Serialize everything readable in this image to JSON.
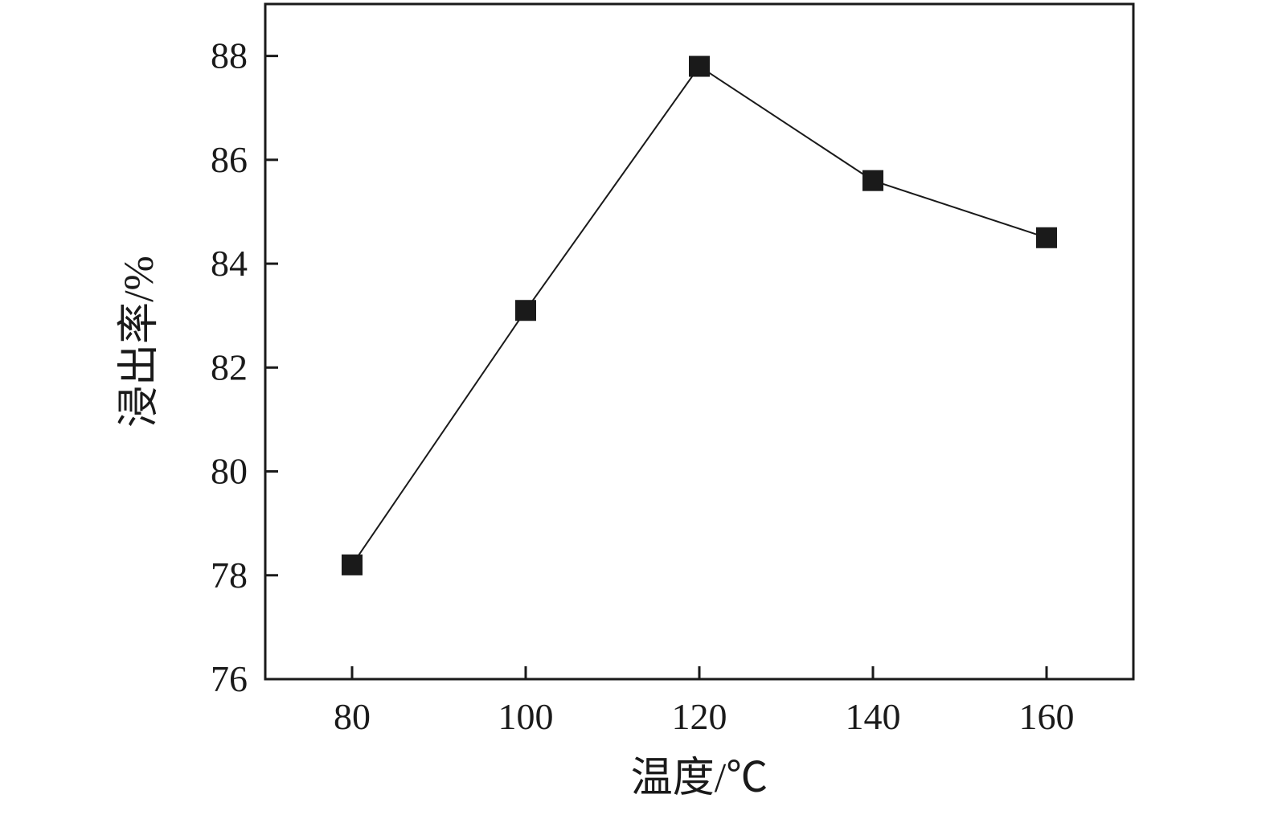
{
  "chart_data": {
    "type": "line",
    "series": [
      {
        "name": "浸出率",
        "x": [
          80,
          100,
          120,
          140,
          160
        ],
        "y": [
          78.2,
          83.1,
          87.8,
          85.6,
          84.5
        ],
        "marker": "square",
        "color": "#1a1a1a"
      }
    ],
    "title": "",
    "xlabel": "温度/℃",
    "ylabel": "浸出率/%",
    "xlim": [
      70,
      170
    ],
    "ylim": [
      76,
      89
    ],
    "x_ticks": [
      80,
      100,
      120,
      140,
      160
    ],
    "y_ticks": [
      76,
      78,
      80,
      82,
      84,
      86,
      88
    ],
    "grid": false,
    "legend_position": "none",
    "background_color": "#ffffff",
    "axis_color": "#1a1a1a"
  }
}
